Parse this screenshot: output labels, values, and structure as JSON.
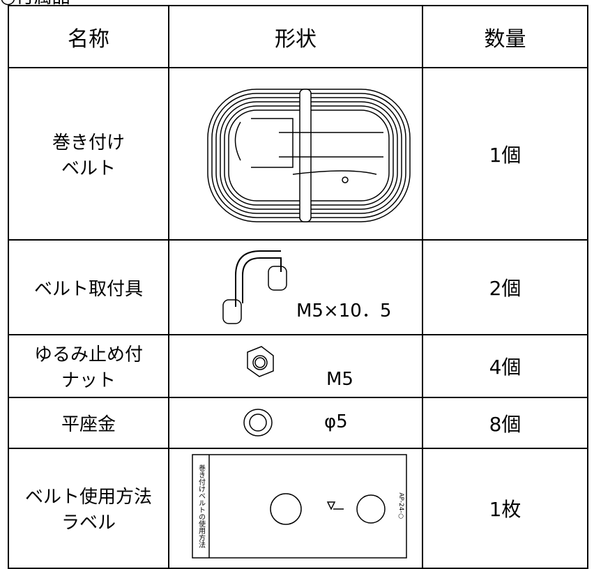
{
  "header": {
    "title": "○付属品"
  },
  "table": {
    "columns": [
      "名称",
      "形状",
      "数量"
    ],
    "rows": [
      {
        "name": [
          "巻き付け",
          "ベルト"
        ],
        "quantity": "1個"
      },
      {
        "name": [
          "ベルト取付具"
        ],
        "shape_label": "M5×10．5",
        "quantity": "2個"
      },
      {
        "name": [
          "ゆるみ止め付",
          "ナット"
        ],
        "shape_label": "M5",
        "quantity": "4個"
      },
      {
        "name": [
          "平座金"
        ],
        "shape_label": "φ5",
        "quantity": "8個"
      },
      {
        "name": [
          "ベルト使用方法",
          "ラベル"
        ],
        "label_title": "巻き付けベルトの使用方法",
        "label_code": "AP-24-○",
        "quantity": "1枚"
      }
    ]
  }
}
